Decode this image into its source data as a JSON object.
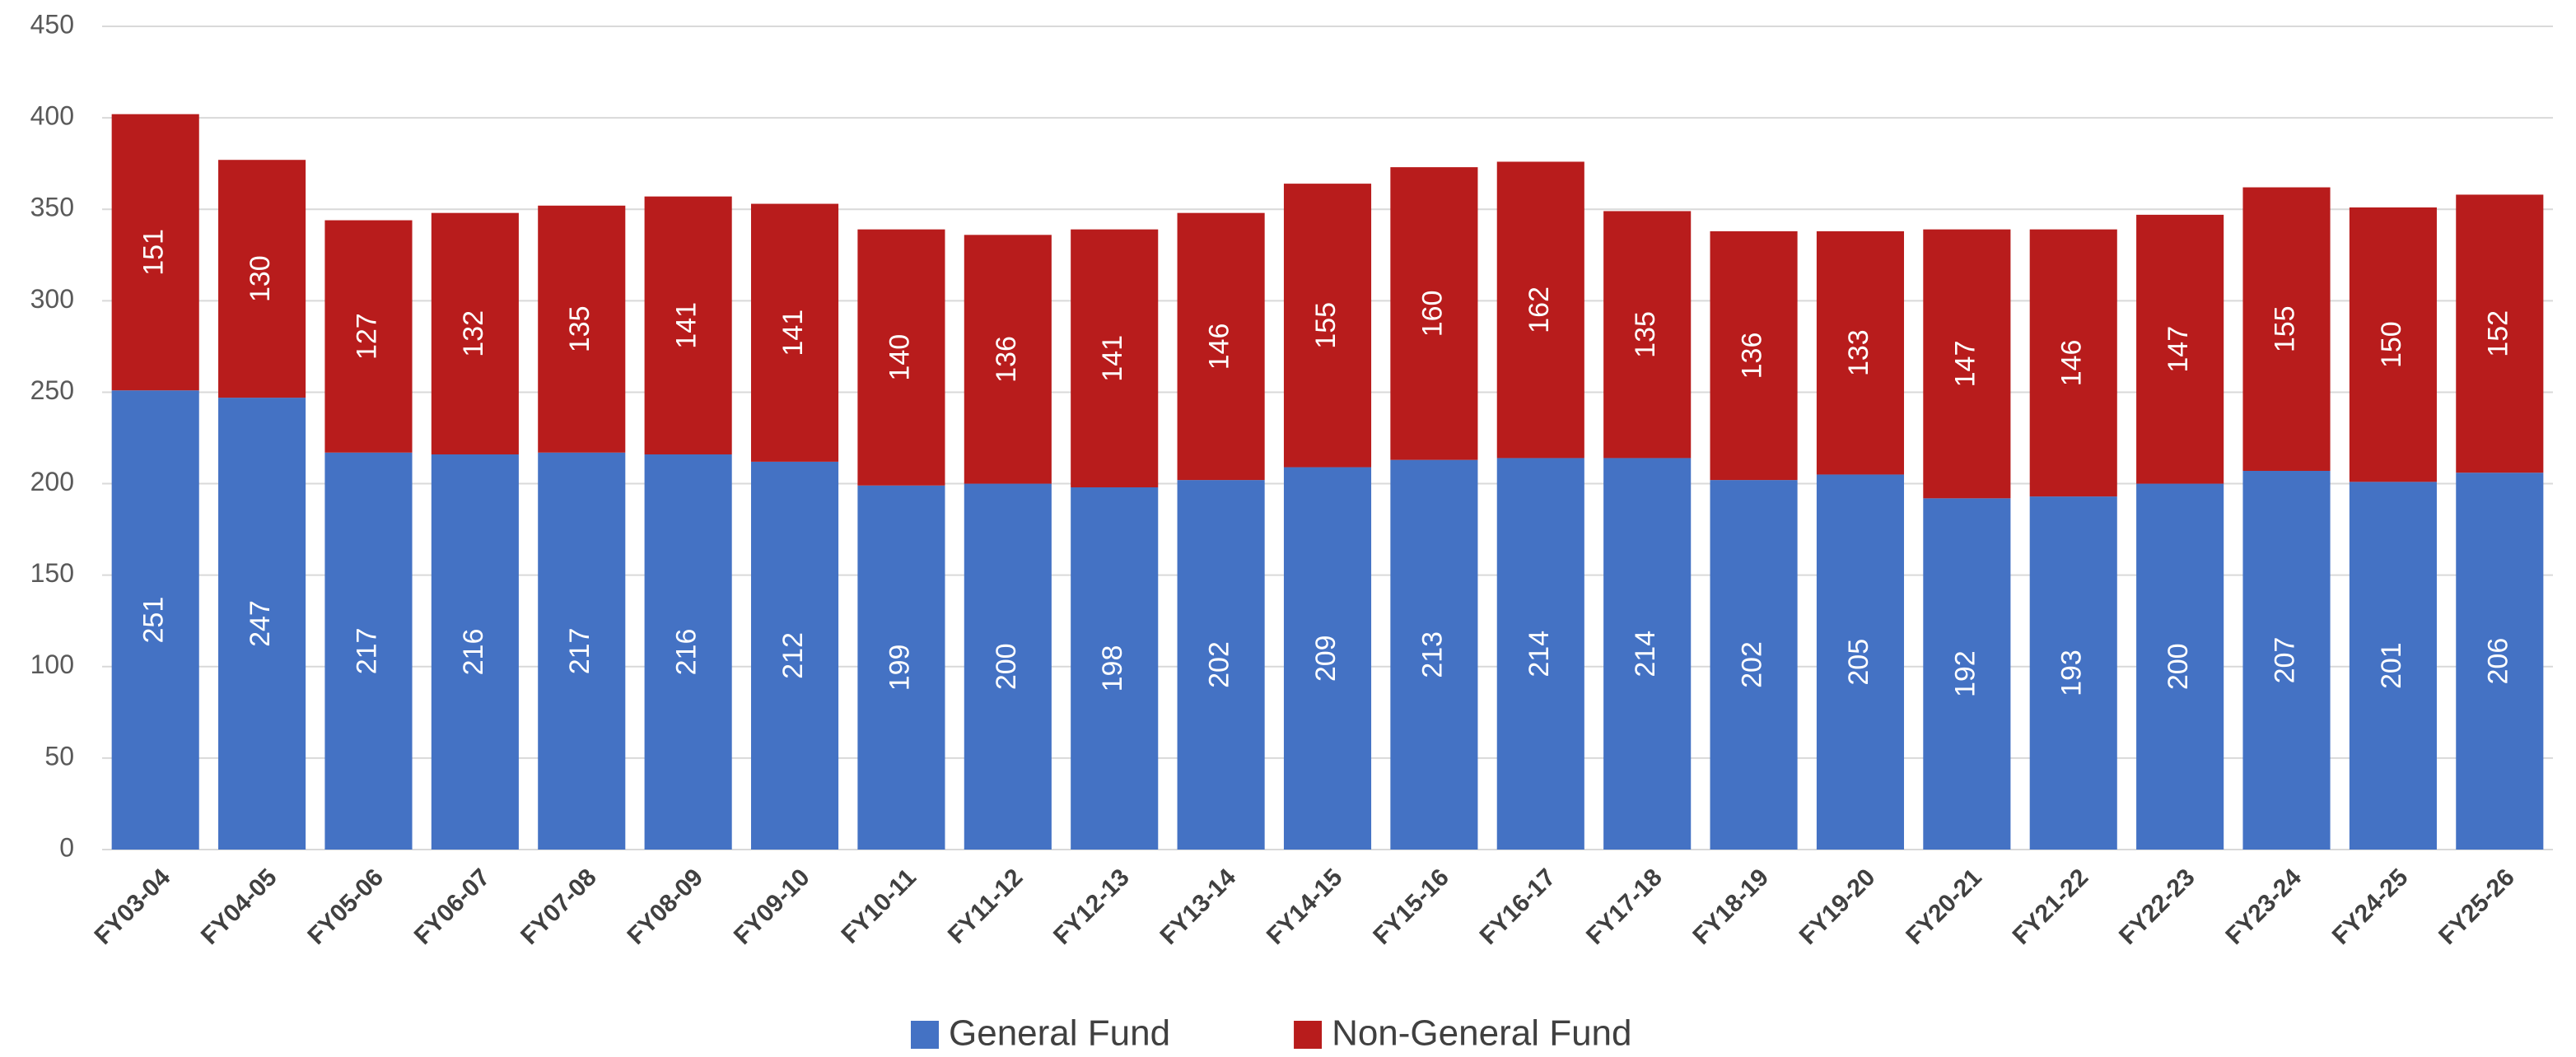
{
  "chart_data": {
    "type": "stacked_bar",
    "categories": [
      "FY03-04",
      "FY04-05",
      "FY05-06",
      "FY06-07",
      "FY07-08",
      "FY08-09",
      "FY09-10",
      "FY10-11",
      "FY11-12",
      "FY12-13",
      "FY13-14",
      "FY14-15",
      "FY15-16",
      "FY16-17",
      "FY17-18",
      "FY18-19",
      "FY19-20",
      "FY20-21",
      "FY21-22",
      "FY22-23",
      "FY23-24",
      "FY24-25",
      "FY25-26"
    ],
    "series": [
      {
        "name": "General Fund",
        "color": "#4472c4",
        "values": [
          251,
          247,
          217,
          216,
          217,
          216,
          212,
          199,
          200,
          198,
          202,
          209,
          213,
          214,
          214,
          202,
          205,
          192,
          193,
          200,
          207,
          201,
          206
        ]
      },
      {
        "name": "Non-General Fund",
        "color": "#b81c1c",
        "values": [
          151,
          130,
          127,
          132,
          135,
          141,
          141,
          140,
          136,
          141,
          146,
          155,
          160,
          162,
          135,
          136,
          133,
          147,
          146,
          147,
          155,
          150,
          152
        ]
      }
    ],
    "ylim": [
      0,
      450
    ],
    "yticks": [
      0,
      50,
      100,
      150,
      200,
      250,
      300,
      350,
      400,
      450
    ],
    "grid": true,
    "legend": "bottom"
  }
}
